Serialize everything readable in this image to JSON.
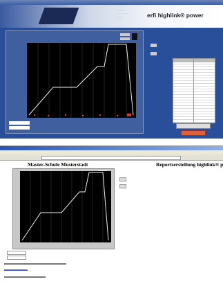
{
  "top_window": {
    "brand": "erfi highlink® power"
  },
  "report_window": {
    "school": "Master-Schule Musterstadt",
    "report_title": "Reportserstellung highlink® po"
  }
}
